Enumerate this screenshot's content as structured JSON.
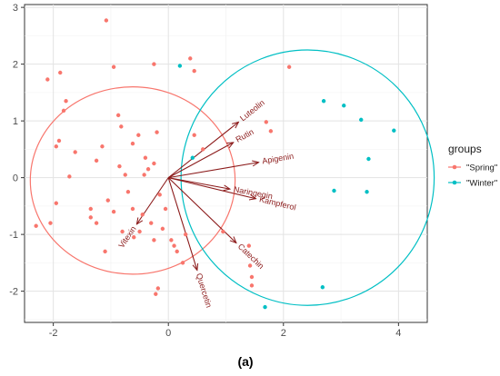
{
  "chart_data": {
    "type": "scatter",
    "xlim": [
      -2.5,
      4.5
    ],
    "ylim": [
      -2.55,
      3.05
    ],
    "x_ticks": [
      -2,
      0,
      2,
      4
    ],
    "y_ticks": [
      -2,
      -1,
      0,
      1,
      2,
      3
    ],
    "grid": true,
    "legend_position": "right",
    "legend_title": "groups",
    "caption": "(a)",
    "series": [
      {
        "name": "\"Spring\"",
        "color": "#f8766d",
        "points": [
          [
            -1.08,
            2.77
          ],
          [
            -0.95,
            1.95
          ],
          [
            -0.25,
            2.0
          ],
          [
            0.38,
            2.1
          ],
          [
            0.45,
            1.88
          ],
          [
            2.1,
            1.95
          ],
          [
            -2.1,
            1.73
          ],
          [
            -1.88,
            1.85
          ],
          [
            -1.78,
            1.35
          ],
          [
            -1.82,
            1.18
          ],
          [
            -1.9,
            0.65
          ],
          [
            -1.62,
            0.45
          ],
          [
            -1.95,
            0.55
          ],
          [
            -1.72,
            0.02
          ],
          [
            -1.25,
            0.3
          ],
          [
            -0.87,
            1.1
          ],
          [
            -0.82,
            0.9
          ],
          [
            -0.52,
            0.75
          ],
          [
            -0.62,
            0.6
          ],
          [
            -0.2,
            0.8
          ],
          [
            -0.4,
            0.35
          ],
          [
            -0.35,
            0.15
          ],
          [
            -0.25,
            0.25
          ],
          [
            -0.42,
            0.05
          ],
          [
            -0.85,
            0.2
          ],
          [
            -0.75,
            0.05
          ],
          [
            -1.15,
            0.55
          ],
          [
            -1.05,
            -0.4
          ],
          [
            -0.95,
            -0.6
          ],
          [
            -1.35,
            -0.55
          ],
          [
            -1.35,
            -0.7
          ],
          [
            -1.25,
            -0.8
          ],
          [
            -1.1,
            -1.3
          ],
          [
            -0.7,
            -0.25
          ],
          [
            -0.62,
            -0.55
          ],
          [
            -0.45,
            -0.65
          ],
          [
            -0.5,
            -0.95
          ],
          [
            -0.3,
            -0.8
          ],
          [
            -0.15,
            -0.3
          ],
          [
            -0.05,
            -0.55
          ],
          [
            -0.1,
            -0.9
          ],
          [
            0.05,
            -1.1
          ],
          [
            0.15,
            -1.3
          ],
          [
            0.25,
            -1.5
          ],
          [
            -0.25,
            -1.1
          ],
          [
            -0.6,
            -1.05
          ],
          [
            -0.8,
            -0.95
          ],
          [
            -2.3,
            -0.85
          ],
          [
            -2.05,
            -0.8
          ],
          [
            -1.95,
            -0.45
          ],
          [
            -0.18,
            -1.95
          ],
          [
            -0.22,
            -2.05
          ],
          [
            0.95,
            -0.95
          ],
          [
            1.4,
            -1.2
          ],
          [
            1.42,
            -1.55
          ],
          [
            1.45,
            -1.75
          ],
          [
            1.45,
            -1.9
          ],
          [
            1.7,
            0.98
          ],
          [
            1.78,
            0.82
          ],
          [
            0.6,
            0.5
          ],
          [
            0.45,
            0.75
          ],
          [
            0.3,
            -1.0
          ],
          [
            0.1,
            -1.2
          ]
        ]
      },
      {
        "name": "\"Winter\"",
        "color": "#00bfc4",
        "points": [
          [
            0.2,
            1.97
          ],
          [
            2.7,
            1.35
          ],
          [
            3.05,
            1.27
          ],
          [
            3.35,
            1.02
          ],
          [
            3.92,
            0.83
          ],
          [
            3.48,
            0.33
          ],
          [
            2.88,
            -0.23
          ],
          [
            3.45,
            -0.25
          ],
          [
            0.42,
            0.35
          ],
          [
            2.68,
            -1.93
          ],
          [
            1.68,
            -2.28
          ]
        ]
      }
    ],
    "ellipses": [
      {
        "group": "\"Spring\"",
        "cx": -0.62,
        "cy": -0.05,
        "rx": 1.78,
        "ry": 1.65,
        "color": "#f8766d"
      },
      {
        "group": "\"Winter\"",
        "cx": 2.42,
        "cy": 0.0,
        "rx": 2.2,
        "ry": 2.25,
        "color": "#00bfc4"
      }
    ],
    "vectors": [
      {
        "label": "Luteolin",
        "x": 1.22,
        "y": 0.98
      },
      {
        "label": "Rutin",
        "x": 1.13,
        "y": 0.62
      },
      {
        "label": "Apigenin",
        "x": 1.57,
        "y": 0.27
      },
      {
        "label": "Naringegin",
        "x": 1.07,
        "y": -0.2
      },
      {
        "label": "Kampferol",
        "x": 1.52,
        "y": -0.37
      },
      {
        "label": "Catechin",
        "x": 1.18,
        "y": -1.15
      },
      {
        "label": "Quercetin",
        "x": 0.5,
        "y": -1.63
      },
      {
        "label": "Vitexin",
        "x": -0.55,
        "y": -0.82
      }
    ],
    "vector_color": "#8b1a1a"
  }
}
